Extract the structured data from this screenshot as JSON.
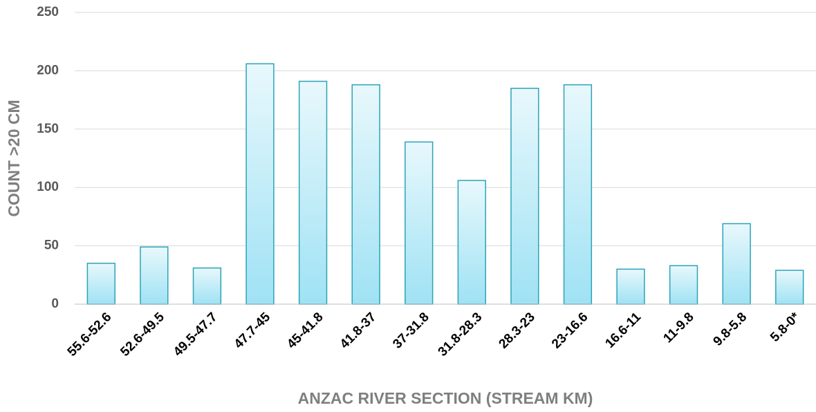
{
  "chart_data": {
    "type": "bar",
    "x_label": "ANZAC RIVER SECTION (STREAM KM)",
    "y_label": "COUNT >20 CM",
    "categories": [
      "55.6-52.6",
      "52.6-49.5",
      "49.5-47.7",
      "47.7-45",
      "45-41.8",
      "41.8-37",
      "37-31.8",
      "31.8-28.3",
      "28.3-23",
      "23-16.6",
      "16.6-11",
      "11-9.8",
      "9.8-5.8",
      "5.8-0*"
    ],
    "values": [
      35,
      49,
      31,
      206,
      191,
      188,
      139,
      106,
      185,
      188,
      30,
      33,
      69,
      29
    ],
    "color": "#2aa3b8",
    "ylim": [
      0,
      250
    ],
    "yticks": [
      0,
      50,
      100,
      150,
      200,
      250
    ],
    "grid": true
  }
}
